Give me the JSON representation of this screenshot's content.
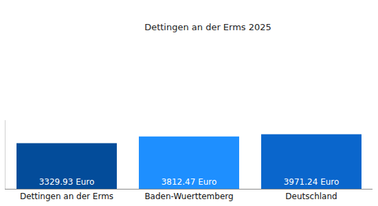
{
  "chart_data": {
    "type": "bar",
    "title": "Dettingen an der Erms 2025",
    "categories": [
      "Dettingen an der Erms",
      "Baden-Wuerttemberg",
      "Deutschland"
    ],
    "values": [
      3329.93,
      3812.47,
      3971.24
    ],
    "value_labels": [
      "3329.93 Euro",
      "3812.47 Euro",
      "3971.24 Euro"
    ],
    "colors": [
      "#034c9a",
      "#1e8fff",
      "#0a66cc"
    ],
    "ylim": [
      0,
      5000
    ],
    "data_labels": true,
    "tick_labels": "x",
    "grid": false
  }
}
